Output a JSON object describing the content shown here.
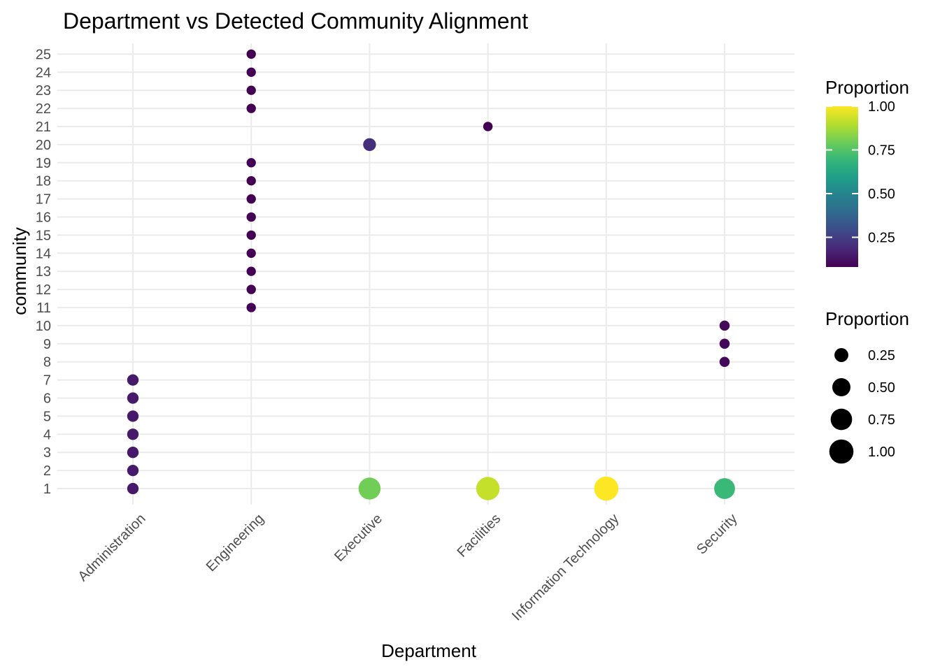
{
  "chart_data": {
    "type": "scatter",
    "title": "Department vs Detected Community Alignment",
    "xlabel": "Department",
    "ylabel": "community",
    "categories": [
      "Administration",
      "Engineering",
      "Executive",
      "Facilities",
      "Information Technology",
      "Security"
    ],
    "y_ticks": [
      1,
      2,
      3,
      4,
      5,
      6,
      7,
      8,
      9,
      10,
      11,
      12,
      13,
      14,
      15,
      16,
      17,
      18,
      19,
      20,
      21,
      22,
      23,
      24,
      25
    ],
    "grid": true,
    "legend_placement": "right",
    "color_legend": {
      "title": "Proportion",
      "min": 0.08,
      "max": 1.0,
      "ticks": [
        0.25,
        0.5,
        0.75,
        1.0
      ],
      "tick_labels": [
        "0.25",
        "0.50",
        "0.75",
        "1.00"
      ],
      "palette": [
        "#440154",
        "#482878",
        "#3E4A89",
        "#31688E",
        "#26828E",
        "#1F9E89",
        "#35B779",
        "#6DCD59",
        "#B4DE2C",
        "#FDE725"
      ]
    },
    "size_legend": {
      "title": "Proportion",
      "values": [
        0.25,
        0.5,
        0.75,
        1.0
      ],
      "labels": [
        "0.25",
        "0.50",
        "0.75",
        "1.00"
      ]
    },
    "points": [
      {
        "department": "Administration",
        "community": 1,
        "proportion": 0.143
      },
      {
        "department": "Administration",
        "community": 2,
        "proportion": 0.143
      },
      {
        "department": "Administration",
        "community": 3,
        "proportion": 0.143
      },
      {
        "department": "Administration",
        "community": 4,
        "proportion": 0.143
      },
      {
        "department": "Administration",
        "community": 5,
        "proportion": 0.143
      },
      {
        "department": "Administration",
        "community": 6,
        "proportion": 0.143
      },
      {
        "department": "Administration",
        "community": 7,
        "proportion": 0.143
      },
      {
        "department": "Engineering",
        "community": 11,
        "proportion": 0.077
      },
      {
        "department": "Engineering",
        "community": 12,
        "proportion": 0.077
      },
      {
        "department": "Engineering",
        "community": 13,
        "proportion": 0.077
      },
      {
        "department": "Engineering",
        "community": 14,
        "proportion": 0.077
      },
      {
        "department": "Engineering",
        "community": 15,
        "proportion": 0.077
      },
      {
        "department": "Engineering",
        "community": 16,
        "proportion": 0.077
      },
      {
        "department": "Engineering",
        "community": 17,
        "proportion": 0.077
      },
      {
        "department": "Engineering",
        "community": 18,
        "proportion": 0.077
      },
      {
        "department": "Engineering",
        "community": 19,
        "proportion": 0.077
      },
      {
        "department": "Engineering",
        "community": 22,
        "proportion": 0.077
      },
      {
        "department": "Engineering",
        "community": 23,
        "proportion": 0.077
      },
      {
        "department": "Engineering",
        "community": 24,
        "proportion": 0.077
      },
      {
        "department": "Engineering",
        "community": 25,
        "proportion": 0.077
      },
      {
        "department": "Executive",
        "community": 1,
        "proportion": 0.8
      },
      {
        "department": "Executive",
        "community": 20,
        "proportion": 0.2
      },
      {
        "department": "Facilities",
        "community": 1,
        "proportion": 0.92
      },
      {
        "department": "Facilities",
        "community": 21,
        "proportion": 0.08
      },
      {
        "department": "Information Technology",
        "community": 1,
        "proportion": 1.0
      },
      {
        "department": "Security",
        "community": 1,
        "proportion": 0.7
      },
      {
        "department": "Security",
        "community": 8,
        "proportion": 0.1
      },
      {
        "department": "Security",
        "community": 9,
        "proportion": 0.1
      },
      {
        "department": "Security",
        "community": 10,
        "proportion": 0.1
      }
    ]
  }
}
